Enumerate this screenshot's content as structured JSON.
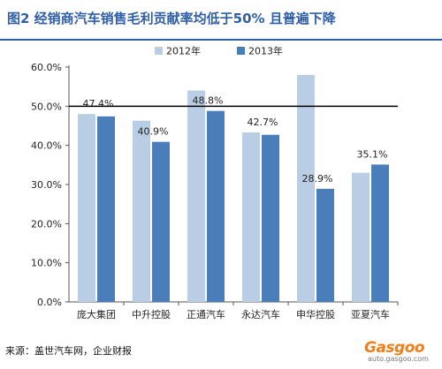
{
  "header": {
    "title": "图2 经销商汽车销售毛利贡献率均低于50% 且普遍下降"
  },
  "footer": {
    "source": "来源：盖世汽车网，企业财报"
  },
  "watermark": {
    "logo_text": "Gasgoo",
    "site": "auto.gasgoo.com"
  },
  "colors": {
    "series_2012": "#b9cde5",
    "series_2013": "#4a7ebb",
    "reference_line": "#000000",
    "title": "#2f5fa8"
  },
  "chart_data": {
    "type": "bar",
    "title": "",
    "xlabel": "",
    "ylabel": "",
    "categories": [
      "庞大集团",
      "中升控股",
      "正通汽车",
      "永达汽车",
      "申华控股",
      "亚夏汽车"
    ],
    "series": [
      {
        "name": "2012年",
        "values": [
          48.0,
          46.3,
          54.0,
          43.3,
          58.0,
          33.0
        ],
        "labels": [
          "",
          "",
          "",
          "",
          "",
          ""
        ]
      },
      {
        "name": "2013年",
        "values": [
          47.4,
          40.9,
          48.8,
          42.7,
          28.9,
          35.1
        ],
        "labels": [
          "47.4%",
          "40.9%",
          "48.8%",
          "42.7%",
          "28.9%",
          "35.1%"
        ]
      }
    ],
    "ylim": [
      0,
      60
    ],
    "yticks": [
      "0.0%",
      "10.0%",
      "20.0%",
      "30.0%",
      "40.0%",
      "50.0%",
      "60.0%"
    ],
    "reference_line": 50,
    "legend_position": "top-center",
    "grid": false
  }
}
